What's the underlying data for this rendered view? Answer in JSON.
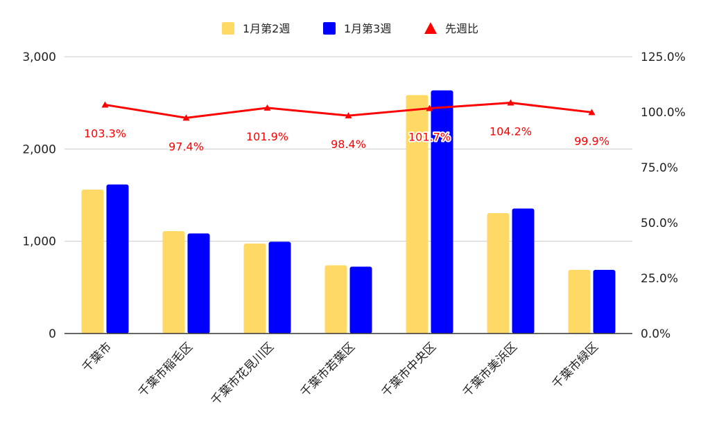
{
  "chart_data": {
    "type": "bar",
    "categories": [
      "千葉市",
      "千葉市稲毛区",
      "千葉市花見川区",
      "千葉市若葉区",
      "千葉市中央区",
      "千葉市美浜区",
      "千葉市緑区"
    ],
    "series": [
      {
        "name": "1月第2週",
        "type": "bar",
        "axis": "left",
        "color": "#ffd966",
        "values": [
          1560,
          1110,
          975,
          740,
          2585,
          1305,
          690
        ]
      },
      {
        "name": "1月第3週",
        "type": "bar",
        "axis": "left",
        "color": "#0000ff",
        "values": [
          1615,
          1085,
          995,
          725,
          2635,
          1355,
          690
        ]
      },
      {
        "name": "先週比",
        "type": "line",
        "axis": "right",
        "color": "#ff0000",
        "marker": "triangle",
        "values": [
          103.3,
          97.4,
          101.9,
          98.4,
          101.7,
          104.2,
          99.9
        ],
        "labels": [
          "103.3%",
          "97.4%",
          "101.9%",
          "98.4%",
          "101.7%",
          "104.2%",
          "99.9%"
        ]
      }
    ],
    "y_left": {
      "ylim": [
        0,
        3000
      ],
      "ticks": [
        "0",
        "1,000",
        "2,000",
        "3,000"
      ],
      "tick_values": [
        0,
        1000,
        2000,
        3000
      ]
    },
    "y_right": {
      "ylim": [
        0,
        125
      ],
      "ticks": [
        "0.0%",
        "25.0%",
        "50.0%",
        "75.0%",
        "100.0%",
        "125.0%"
      ],
      "tick_values": [
        0,
        25,
        50,
        75,
        100,
        125
      ]
    },
    "grid": true,
    "legend": "top-center",
    "title": "",
    "xlabel": "",
    "ylabel": ""
  }
}
